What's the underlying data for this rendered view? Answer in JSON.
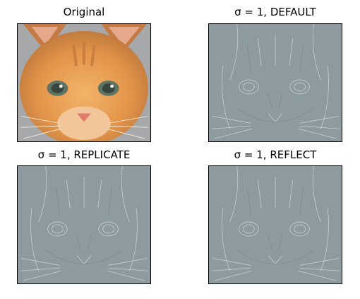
{
  "panels": [
    {
      "title": "Original"
    },
    {
      "title": "σ = 1, DEFAULT"
    },
    {
      "title": "σ = 1, REPLICATE"
    },
    {
      "title": "σ = 1, REFLECT"
    }
  ],
  "colors": {
    "filtered_gray": "#8d9aa0",
    "fur_orange": "#e59a4a",
    "eye_green": "#6f8a7a",
    "nose_pink": "#e07a6a",
    "background_gray": "#a6a8aa"
  }
}
